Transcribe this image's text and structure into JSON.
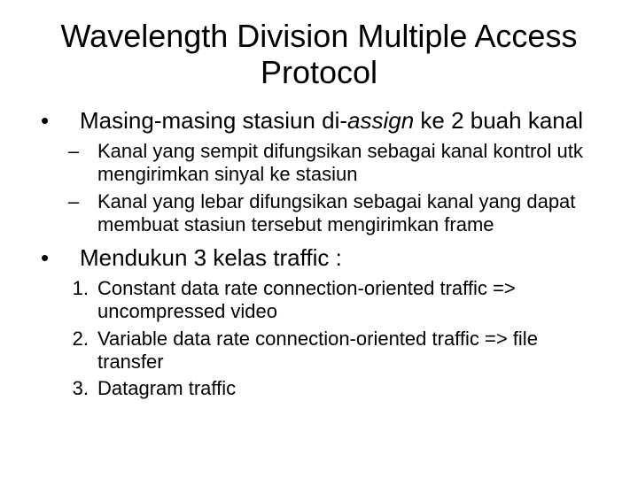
{
  "title": "Wavelength Division Multiple Access Protocol",
  "bullets": [
    {
      "pre": "Masing-masing stasiun di-",
      "italic": "assign",
      "post": " ke 2 buah kanal",
      "subs": [
        "Kanal yang sempit difungsikan sebagai kanal kontrol utk mengirimkan sinyal ke stasiun",
        "Kanal yang lebar difungsikan sebagai kanal yang dapat membuat stasiun tersebut mengirimkan frame"
      ]
    },
    {
      "text": "Mendukun 3 kelas traffic :",
      "nums": [
        "Constant data rate connection-oriented traffic => uncompressed video",
        "Variable data rate connection-oriented traffic => file transfer",
        "Datagram traffic"
      ]
    }
  ],
  "markers": {
    "bullet": "•",
    "dash": "–"
  }
}
